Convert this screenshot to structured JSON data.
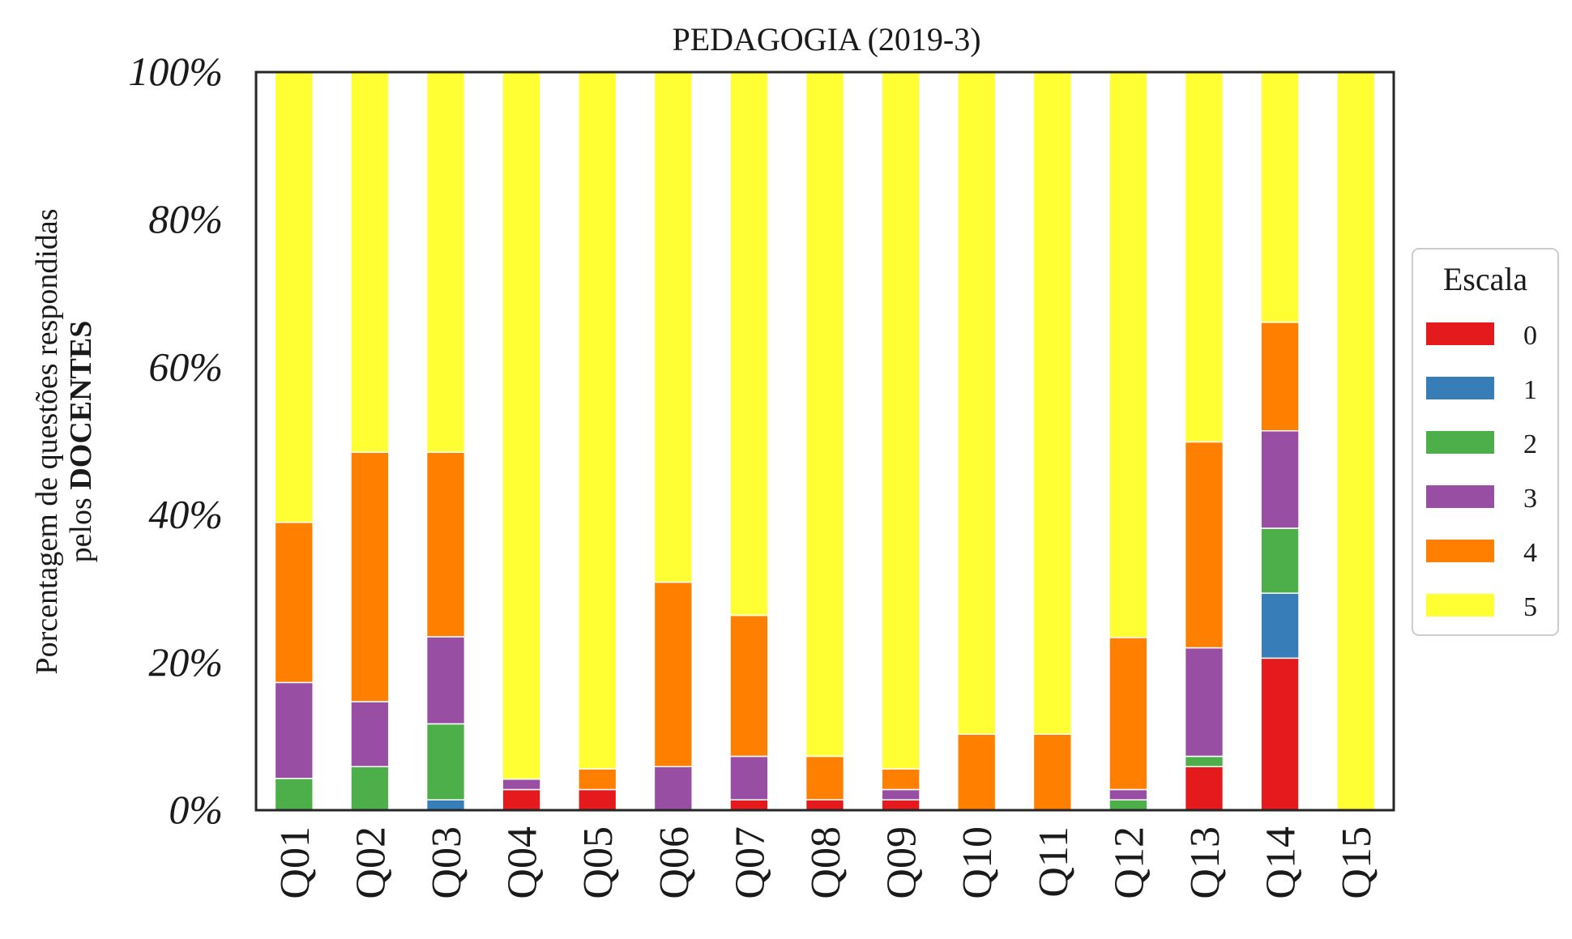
{
  "chart_data": {
    "type": "bar",
    "stacked": true,
    "title": "PEDAGOGIA (2019-3)",
    "ylabel_line1": "Porcentagem de questões respondidas",
    "ylabel_line2_prefix": "pelos ",
    "ylabel_line2_bold": "DOCENTES",
    "ylim": [
      0,
      100
    ],
    "yticks": [
      "0%",
      "20%",
      "40%",
      "60%",
      "80%",
      "100%"
    ],
    "grid": false,
    "legend_position": "center-right",
    "categories": [
      "Q01",
      "Q02",
      "Q03",
      "Q04",
      "Q05",
      "Q06",
      "Q07",
      "Q08",
      "Q09",
      "Q10",
      "Q11",
      "Q12",
      "Q13",
      "Q14",
      "Q15"
    ],
    "legend": {
      "title": "Escala"
    },
    "series": [
      {
        "name": "0",
        "color": "#e41a1c",
        "values": [
          0,
          0,
          0,
          2.8,
          2.8,
          0,
          1.4,
          1.4,
          1.4,
          0,
          0,
          0,
          5.9,
          20.6,
          0
        ]
      },
      {
        "name": "1",
        "color": "#377eb8",
        "values": [
          0,
          0,
          1.4,
          0,
          0,
          0,
          0,
          0,
          0,
          0,
          0,
          0,
          0,
          8.8,
          0
        ]
      },
      {
        "name": "2",
        "color": "#4daf4a",
        "values": [
          4.3,
          5.9,
          10.3,
          0,
          0,
          0,
          0,
          0,
          0,
          0,
          0,
          1.4,
          1.4,
          8.8,
          0
        ]
      },
      {
        "name": "3",
        "color": "#984ea3",
        "values": [
          13.0,
          8.8,
          11.8,
          1.4,
          0,
          5.9,
          5.9,
          0,
          1.4,
          0,
          0,
          1.4,
          14.7,
          13.2,
          0
        ]
      },
      {
        "name": "4",
        "color": "#ff7f00",
        "values": [
          21.7,
          33.8,
          25.0,
          0,
          2.8,
          25.0,
          19.1,
          5.9,
          2.8,
          10.3,
          10.3,
          20.6,
          27.9,
          14.7,
          0
        ]
      },
      {
        "name": "5",
        "color": "#ffff33",
        "values": [
          61.0,
          51.5,
          51.5,
          95.8,
          94.4,
          69.1,
          73.6,
          92.7,
          94.4,
          89.7,
          89.7,
          76.6,
          50.1,
          33.9,
          100
        ]
      }
    ]
  }
}
